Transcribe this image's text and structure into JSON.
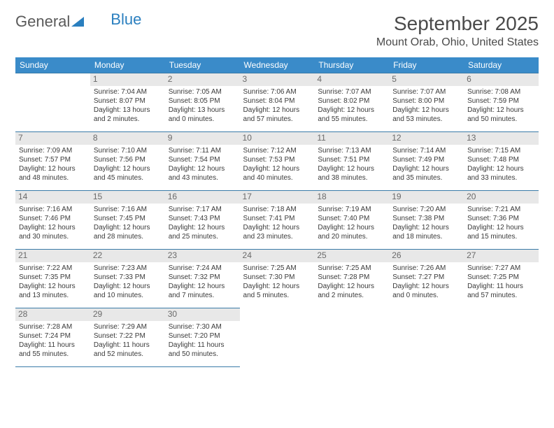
{
  "logo": {
    "part1": "General",
    "part2": "Blue"
  },
  "title": "September 2025",
  "location": "Mount Orab, Ohio, United States",
  "colors": {
    "header_bg": "#3a8bc9",
    "header_text": "#ffffff",
    "border": "#3a7ba8",
    "daynum_bg": "#e8e8e8",
    "daynum_text": "#6a6a6a",
    "body_text": "#3a3a3a",
    "title_text": "#4a4a4a",
    "logo_gray": "#5a5a5a",
    "logo_blue": "#2a7fbf"
  },
  "day_headers": [
    "Sunday",
    "Monday",
    "Tuesday",
    "Wednesday",
    "Thursday",
    "Friday",
    "Saturday"
  ],
  "weeks": [
    [
      {
        "day": "",
        "sunrise": "",
        "sunset": "",
        "daylight": ""
      },
      {
        "day": "1",
        "sunrise": "Sunrise: 7:04 AM",
        "sunset": "Sunset: 8:07 PM",
        "daylight": "Daylight: 13 hours and 2 minutes."
      },
      {
        "day": "2",
        "sunrise": "Sunrise: 7:05 AM",
        "sunset": "Sunset: 8:05 PM",
        "daylight": "Daylight: 13 hours and 0 minutes."
      },
      {
        "day": "3",
        "sunrise": "Sunrise: 7:06 AM",
        "sunset": "Sunset: 8:04 PM",
        "daylight": "Daylight: 12 hours and 57 minutes."
      },
      {
        "day": "4",
        "sunrise": "Sunrise: 7:07 AM",
        "sunset": "Sunset: 8:02 PM",
        "daylight": "Daylight: 12 hours and 55 minutes."
      },
      {
        "day": "5",
        "sunrise": "Sunrise: 7:07 AM",
        "sunset": "Sunset: 8:00 PM",
        "daylight": "Daylight: 12 hours and 53 minutes."
      },
      {
        "day": "6",
        "sunrise": "Sunrise: 7:08 AM",
        "sunset": "Sunset: 7:59 PM",
        "daylight": "Daylight: 12 hours and 50 minutes."
      }
    ],
    [
      {
        "day": "7",
        "sunrise": "Sunrise: 7:09 AM",
        "sunset": "Sunset: 7:57 PM",
        "daylight": "Daylight: 12 hours and 48 minutes."
      },
      {
        "day": "8",
        "sunrise": "Sunrise: 7:10 AM",
        "sunset": "Sunset: 7:56 PM",
        "daylight": "Daylight: 12 hours and 45 minutes."
      },
      {
        "day": "9",
        "sunrise": "Sunrise: 7:11 AM",
        "sunset": "Sunset: 7:54 PM",
        "daylight": "Daylight: 12 hours and 43 minutes."
      },
      {
        "day": "10",
        "sunrise": "Sunrise: 7:12 AM",
        "sunset": "Sunset: 7:53 PM",
        "daylight": "Daylight: 12 hours and 40 minutes."
      },
      {
        "day": "11",
        "sunrise": "Sunrise: 7:13 AM",
        "sunset": "Sunset: 7:51 PM",
        "daylight": "Daylight: 12 hours and 38 minutes."
      },
      {
        "day": "12",
        "sunrise": "Sunrise: 7:14 AM",
        "sunset": "Sunset: 7:49 PM",
        "daylight": "Daylight: 12 hours and 35 minutes."
      },
      {
        "day": "13",
        "sunrise": "Sunrise: 7:15 AM",
        "sunset": "Sunset: 7:48 PM",
        "daylight": "Daylight: 12 hours and 33 minutes."
      }
    ],
    [
      {
        "day": "14",
        "sunrise": "Sunrise: 7:16 AM",
        "sunset": "Sunset: 7:46 PM",
        "daylight": "Daylight: 12 hours and 30 minutes."
      },
      {
        "day": "15",
        "sunrise": "Sunrise: 7:16 AM",
        "sunset": "Sunset: 7:45 PM",
        "daylight": "Daylight: 12 hours and 28 minutes."
      },
      {
        "day": "16",
        "sunrise": "Sunrise: 7:17 AM",
        "sunset": "Sunset: 7:43 PM",
        "daylight": "Daylight: 12 hours and 25 minutes."
      },
      {
        "day": "17",
        "sunrise": "Sunrise: 7:18 AM",
        "sunset": "Sunset: 7:41 PM",
        "daylight": "Daylight: 12 hours and 23 minutes."
      },
      {
        "day": "18",
        "sunrise": "Sunrise: 7:19 AM",
        "sunset": "Sunset: 7:40 PM",
        "daylight": "Daylight: 12 hours and 20 minutes."
      },
      {
        "day": "19",
        "sunrise": "Sunrise: 7:20 AM",
        "sunset": "Sunset: 7:38 PM",
        "daylight": "Daylight: 12 hours and 18 minutes."
      },
      {
        "day": "20",
        "sunrise": "Sunrise: 7:21 AM",
        "sunset": "Sunset: 7:36 PM",
        "daylight": "Daylight: 12 hours and 15 minutes."
      }
    ],
    [
      {
        "day": "21",
        "sunrise": "Sunrise: 7:22 AM",
        "sunset": "Sunset: 7:35 PM",
        "daylight": "Daylight: 12 hours and 13 minutes."
      },
      {
        "day": "22",
        "sunrise": "Sunrise: 7:23 AM",
        "sunset": "Sunset: 7:33 PM",
        "daylight": "Daylight: 12 hours and 10 minutes."
      },
      {
        "day": "23",
        "sunrise": "Sunrise: 7:24 AM",
        "sunset": "Sunset: 7:32 PM",
        "daylight": "Daylight: 12 hours and 7 minutes."
      },
      {
        "day": "24",
        "sunrise": "Sunrise: 7:25 AM",
        "sunset": "Sunset: 7:30 PM",
        "daylight": "Daylight: 12 hours and 5 minutes."
      },
      {
        "day": "25",
        "sunrise": "Sunrise: 7:25 AM",
        "sunset": "Sunset: 7:28 PM",
        "daylight": "Daylight: 12 hours and 2 minutes."
      },
      {
        "day": "26",
        "sunrise": "Sunrise: 7:26 AM",
        "sunset": "Sunset: 7:27 PM",
        "daylight": "Daylight: 12 hours and 0 minutes."
      },
      {
        "day": "27",
        "sunrise": "Sunrise: 7:27 AM",
        "sunset": "Sunset: 7:25 PM",
        "daylight": "Daylight: 11 hours and 57 minutes."
      }
    ],
    [
      {
        "day": "28",
        "sunrise": "Sunrise: 7:28 AM",
        "sunset": "Sunset: 7:24 PM",
        "daylight": "Daylight: 11 hours and 55 minutes."
      },
      {
        "day": "29",
        "sunrise": "Sunrise: 7:29 AM",
        "sunset": "Sunset: 7:22 PM",
        "daylight": "Daylight: 11 hours and 52 minutes."
      },
      {
        "day": "30",
        "sunrise": "Sunrise: 7:30 AM",
        "sunset": "Sunset: 7:20 PM",
        "daylight": "Daylight: 11 hours and 50 minutes."
      },
      {
        "day": "",
        "sunrise": "",
        "sunset": "",
        "daylight": ""
      },
      {
        "day": "",
        "sunrise": "",
        "sunset": "",
        "daylight": ""
      },
      {
        "day": "",
        "sunrise": "",
        "sunset": "",
        "daylight": ""
      },
      {
        "day": "",
        "sunrise": "",
        "sunset": "",
        "daylight": ""
      }
    ]
  ]
}
